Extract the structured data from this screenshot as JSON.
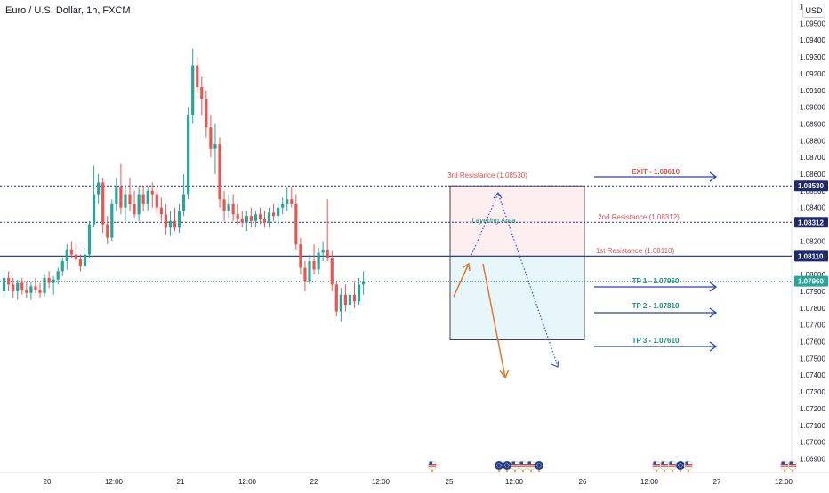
{
  "header": {
    "symbol_title": "Euro / U.S. Dollar, 1h, FXCM",
    "currency_button": "USD"
  },
  "chart_data": {
    "type": "candlestick",
    "title": "Euro / U.S. Dollar, 1h, FXCM",
    "y_range": [
      1.0685,
      1.0955
    ],
    "y_ticks": [
      "1.09600",
      "1.09500",
      "1.09400",
      "1.09300",
      "1.09200",
      "1.09100",
      "1.09000",
      "1.08900",
      "1.08800",
      "1.08700",
      "1.08600",
      "1.08500",
      "1.08400",
      "1.08300",
      "1.08200",
      "1.08100",
      "1.08000",
      "1.07900",
      "1.07800",
      "1.07700",
      "1.07600",
      "1.07500",
      "1.07400",
      "1.07300",
      "1.07200",
      "1.07100",
      "1.07000",
      "1.06900"
    ],
    "x_labels": [
      "20",
      "12:00",
      "21",
      "12:00",
      "22",
      "12:00",
      "25",
      "12:00",
      "26",
      "12:00",
      "27",
      "12:00"
    ],
    "price_tags": [
      {
        "value": "1.08530",
        "color": "#1e2a6e"
      },
      {
        "value": "1.08312",
        "color": "#1e2a6e"
      },
      {
        "value": "1.08110",
        "color": "#1e2a6e"
      },
      {
        "value": "1.07960",
        "color": "#26a69a"
      }
    ],
    "up_color": "#26a69a",
    "down_color": "#ef5350",
    "candles": [
      [
        1.079,
        1.0802,
        1.0786,
        1.0798
      ],
      [
        1.0798,
        1.0802,
        1.079,
        1.0794
      ],
      [
        1.0794,
        1.0798,
        1.0786,
        1.079
      ],
      [
        1.079,
        1.0797,
        1.0785,
        1.0795
      ],
      [
        1.0795,
        1.0798,
        1.0788,
        1.0791
      ],
      [
        1.0791,
        1.0796,
        1.0786,
        1.0789
      ],
      [
        1.0789,
        1.0796,
        1.0785,
        1.0793
      ],
      [
        1.0793,
        1.0798,
        1.0789,
        1.0791
      ],
      [
        1.0791,
        1.0795,
        1.0786,
        1.0789
      ],
      [
        1.0789,
        1.08,
        1.0787,
        1.0798
      ],
      [
        1.0798,
        1.0802,
        1.0792,
        1.0795
      ],
      [
        1.0795,
        1.0799,
        1.0788,
        1.0797
      ],
      [
        1.0797,
        1.0804,
        1.0794,
        1.0802
      ],
      [
        1.0802,
        1.081,
        1.0799,
        1.0808
      ],
      [
        1.0808,
        1.0818,
        1.0803,
        1.0815
      ],
      [
        1.0815,
        1.082,
        1.081,
        1.0812
      ],
      [
        1.0812,
        1.0818,
        1.0807,
        1.0809
      ],
      [
        1.0809,
        1.0812,
        1.0802,
        1.0805
      ],
      [
        1.0805,
        1.0816,
        1.0803,
        1.0812
      ],
      [
        1.0812,
        1.0832,
        1.081,
        1.083
      ],
      [
        1.083,
        1.0865,
        1.0828,
        1.0848
      ],
      [
        1.0848,
        1.086,
        1.0842,
        1.0855
      ],
      [
        1.0855,
        1.0858,
        1.0825,
        1.083
      ],
      [
        1.083,
        1.0835,
        1.0818,
        1.0822
      ],
      [
        1.0822,
        1.0845,
        1.082,
        1.0842
      ],
      [
        1.0842,
        1.0858,
        1.0838,
        1.0852
      ],
      [
        1.0852,
        1.0866,
        1.0836,
        1.084
      ],
      [
        1.084,
        1.0852,
        1.0832,
        1.0848
      ],
      [
        1.0848,
        1.0858,
        1.0838,
        1.0842
      ],
      [
        1.0842,
        1.085,
        1.0834,
        1.0836
      ],
      [
        1.0836,
        1.0852,
        1.0832,
        1.0848
      ],
      [
        1.0848,
        1.0853,
        1.0838,
        1.0842
      ],
      [
        1.0842,
        1.0852,
        1.0838,
        1.085
      ],
      [
        1.085,
        1.0855,
        1.084,
        1.0848
      ],
      [
        1.0848,
        1.0852,
        1.0836,
        1.084
      ],
      [
        1.084,
        1.0846,
        1.0832,
        1.0836
      ],
      [
        1.0836,
        1.0842,
        1.0824,
        1.0828
      ],
      [
        1.0828,
        1.0838,
        1.0823,
        1.0832
      ],
      [
        1.0832,
        1.084,
        1.0826,
        1.0828
      ],
      [
        1.0828,
        1.0842,
        1.0825,
        1.0838
      ],
      [
        1.0838,
        1.086,
        1.0835,
        1.0848
      ],
      [
        1.0848,
        1.09,
        1.0845,
        1.0895
      ],
      [
        1.0895,
        1.0935,
        1.089,
        1.0925
      ],
      [
        1.0925,
        1.093,
        1.0908,
        1.0912
      ],
      [
        1.0912,
        1.0918,
        1.0895,
        1.0905
      ],
      [
        1.0905,
        1.091,
        1.0882,
        1.0888
      ],
      [
        1.0888,
        1.0895,
        1.087,
        1.0875
      ],
      [
        1.0875,
        1.089,
        1.086,
        1.0878
      ],
      [
        1.0878,
        1.0882,
        1.084,
        1.0845
      ],
      [
        1.0845,
        1.085,
        1.0832,
        1.0838
      ],
      [
        1.0838,
        1.0848,
        1.0834,
        1.0842
      ],
      [
        1.0842,
        1.0848,
        1.0832,
        1.0836
      ],
      [
        1.0836,
        1.0842,
        1.083,
        1.0833
      ],
      [
        1.0833,
        1.0838,
        1.0828,
        1.0831
      ],
      [
        1.0831,
        1.0838,
        1.0826,
        1.0835
      ],
      [
        1.0835,
        1.084,
        1.0828,
        1.0832
      ],
      [
        1.0832,
        1.0838,
        1.0828,
        1.0836
      ],
      [
        1.0836,
        1.084,
        1.083,
        1.0833
      ],
      [
        1.0833,
        1.0838,
        1.0828,
        1.0831
      ],
      [
        1.0831,
        1.084,
        1.0828,
        1.0837
      ],
      [
        1.0837,
        1.0842,
        1.0832,
        1.0835
      ],
      [
        1.0835,
        1.0842,
        1.083,
        1.084
      ],
      [
        1.084,
        1.0846,
        1.0836,
        1.0842
      ],
      [
        1.0842,
        1.0852,
        1.0838,
        1.0845
      ],
      [
        1.0845,
        1.0852,
        1.084,
        1.0842
      ],
      [
        1.0842,
        1.0848,
        1.0815,
        1.0818
      ],
      [
        1.0818,
        1.0822,
        1.08,
        1.0804
      ],
      [
        1.0804,
        1.0808,
        1.079,
        1.0796
      ],
      [
        1.0796,
        1.0812,
        1.0794,
        1.0808
      ],
      [
        1.0808,
        1.0818,
        1.08,
        1.0803
      ],
      [
        1.0803,
        1.0816,
        1.08,
        1.0813
      ],
      [
        1.0813,
        1.082,
        1.0808,
        1.0815
      ],
      [
        1.0815,
        1.0845,
        1.0808,
        1.081
      ],
      [
        1.081,
        1.0814,
        1.079,
        1.0794
      ],
      [
        1.0794,
        1.0796,
        1.0775,
        1.0778
      ],
      [
        1.0778,
        1.0792,
        1.0772,
        1.0788
      ],
      [
        1.0788,
        1.0794,
        1.0778,
        1.0782
      ],
      [
        1.0782,
        1.079,
        1.0776,
        1.0788
      ],
      [
        1.0788,
        1.0796,
        1.078,
        1.0784
      ],
      [
        1.0784,
        1.0798,
        1.0782,
        1.0794
      ],
      [
        1.0794,
        1.0802,
        1.0788,
        1.0796
      ]
    ],
    "levels": [
      {
        "value": 1.0853,
        "style": "dotted"
      },
      {
        "value": 1.08312,
        "style": "dotted"
      },
      {
        "value": 1.0811,
        "style": "solid"
      },
      {
        "value": 1.0796,
        "style": "dotted-green"
      }
    ],
    "annotations": {
      "resistance_3": "3rd Resistance (1.08530)",
      "resistance_2": "2nd Resistance (1.08312)",
      "resistance_1": "1st Resistance (1.08110)",
      "layering": "Layering Area",
      "exit": "EXIT - 1.08610",
      "tp1": "TP 1 - 1.07960",
      "tp2": "TP 2 - 1.07810",
      "tp3": "TP 3 - 1.07610"
    },
    "event_icons": {
      "groups": [
        [
          "us"
        ],
        [
          "eu",
          "eu",
          "us",
          "us",
          "us",
          "eu"
        ],
        [
          "us",
          "us",
          "us",
          "eu",
          "us"
        ],
        [
          "us",
          "us"
        ]
      ]
    }
  }
}
